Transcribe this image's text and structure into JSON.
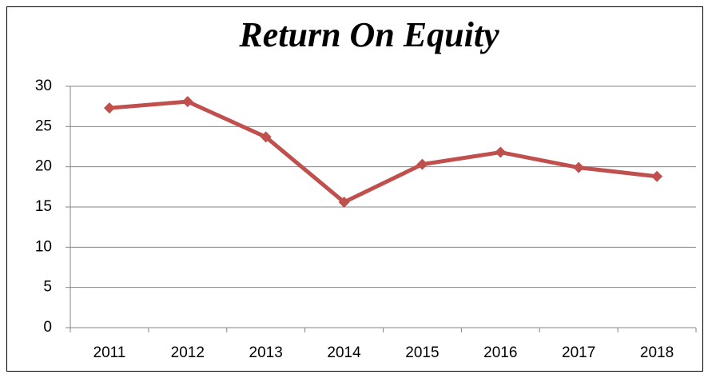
{
  "chart_data": {
    "type": "line",
    "title": "Return On Equity",
    "categories": [
      "2011",
      "2012",
      "2013",
      "2014",
      "2015",
      "2016",
      "2017",
      "2018"
    ],
    "values": [
      27.3,
      28.1,
      23.7,
      15.6,
      20.3,
      21.8,
      19.9,
      18.8
    ],
    "color": "#c0504d",
    "ylim": [
      0,
      30
    ],
    "yticks": [
      0,
      5,
      10,
      15,
      20,
      25,
      30
    ],
    "grid": true
  }
}
